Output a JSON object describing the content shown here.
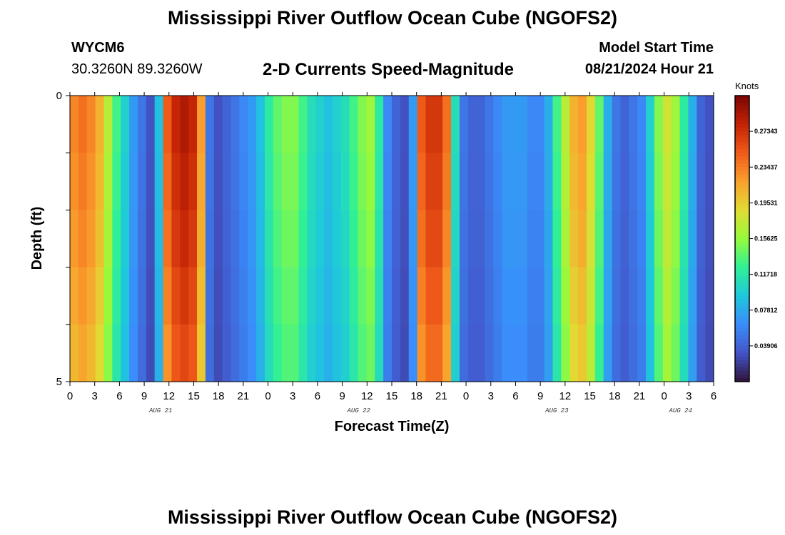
{
  "header": {
    "title": "Mississippi River Outflow Ocean Cube (NGOFS2)",
    "station": "WYCM6",
    "coords": "30.3260N  89.3260W",
    "subtitle": "2-D Currents Speed-Magnitude",
    "start_label": "Model Start Time",
    "start_value": "08/21/2024 Hour 21"
  },
  "footer": {
    "title": "Mississippi River Outflow Ocean Cube (NGOFS2)"
  },
  "chart_data": {
    "type": "heatmap",
    "xlabel": "Forecast Time(Z)",
    "ylabel": "Depth (ft)",
    "x_tick_labels": [
      "0",
      "3",
      "6",
      "9",
      "12",
      "15",
      "18",
      "21",
      "0",
      "3",
      "6",
      "9",
      "12",
      "15",
      "18",
      "21",
      "0",
      "3",
      "6",
      "9",
      "12",
      "15",
      "18",
      "21",
      "0",
      "3",
      "6"
    ],
    "date_labels": [
      {
        "text": "AUG 21",
        "hour_index": 11
      },
      {
        "text": "AUG 22",
        "hour_index": 35
      },
      {
        "text": "AUG 23",
        "hour_index": 59
      },
      {
        "text": "AUG 24",
        "hour_index": 74
      }
    ],
    "x_range_hours": [
      0,
      78
    ],
    "y_range_ft": [
      0,
      5
    ],
    "y_tick_labels": [
      "0",
      "5"
    ],
    "depth_levels": 5,
    "colorbar": {
      "units": "Knots",
      "range": [
        0,
        0.3125
      ],
      "tick_labels": [
        "0.27343",
        "0.23437",
        "0.19531",
        "0.15625",
        "0.11718",
        "0.07812",
        "0.03906"
      ],
      "tick_values": [
        0.27343,
        0.23437,
        0.19531,
        0.15625,
        0.11718,
        0.07812,
        0.03906
      ]
    },
    "speed_knots_by_hour": [
      0.23,
      0.24,
      0.23,
      0.21,
      0.17,
      0.13,
      0.1,
      0.07,
      0.05,
      0.03,
      0.09,
      0.25,
      0.28,
      0.29,
      0.28,
      0.22,
      0.05,
      0.03,
      0.04,
      0.05,
      0.06,
      0.07,
      0.09,
      0.12,
      0.14,
      0.15,
      0.15,
      0.13,
      0.11,
      0.1,
      0.09,
      0.1,
      0.11,
      0.13,
      0.15,
      0.16,
      0.12,
      0.06,
      0.04,
      0.03,
      0.07,
      0.25,
      0.27,
      0.27,
      0.24,
      0.11,
      0.05,
      0.04,
      0.04,
      0.05,
      0.06,
      0.07,
      0.07,
      0.07,
      0.06,
      0.06,
      0.08,
      0.13,
      0.17,
      0.21,
      0.22,
      0.19,
      0.14,
      0.08,
      0.05,
      0.04,
      0.05,
      0.06,
      0.1,
      0.15,
      0.18,
      0.16,
      0.12,
      0.08,
      0.04,
      0.03
    ],
    "depth_factor": [
      1.0,
      0.98,
      0.96,
      0.93,
      0.9
    ]
  }
}
